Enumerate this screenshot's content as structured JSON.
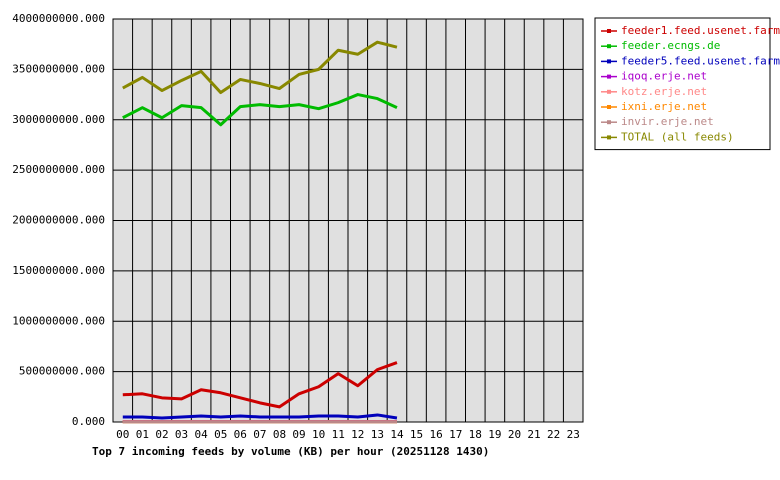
{
  "chart_data": {
    "type": "line",
    "title": "Top 7 incoming feeds by volume (KB) per hour (20251128 1430)",
    "categories": [
      "00",
      "01",
      "02",
      "03",
      "04",
      "05",
      "06",
      "07",
      "08",
      "09",
      "10",
      "11",
      "12",
      "13",
      "14",
      "15",
      "16",
      "17",
      "18",
      "19",
      "20",
      "21",
      "22",
      "23"
    ],
    "ylim": [
      0,
      4000000000
    ],
    "yticks": [
      {
        "value": 0,
        "label": "0.000"
      },
      {
        "value": 500000000,
        "label": "500000000.000"
      },
      {
        "value": 1000000000,
        "label": "1000000000.000"
      },
      {
        "value": 1500000000,
        "label": "1500000000.000"
      },
      {
        "value": 2000000000,
        "label": "2000000000.000"
      },
      {
        "value": 2500000000,
        "label": "2500000000.000"
      },
      {
        "value": 3000000000,
        "label": "3000000000.000"
      },
      {
        "value": 3500000000,
        "label": "3500000000.000"
      },
      {
        "value": 4000000000,
        "label": "4000000000.000"
      }
    ],
    "grid": true,
    "legend": "right",
    "series": [
      {
        "name": "feeder1.feed.usenet.farm",
        "color": "#cc0000",
        "values": [
          270000000,
          280000000,
          240000000,
          230000000,
          320000000,
          290000000,
          240000000,
          190000000,
          150000000,
          280000000,
          350000000,
          480000000,
          360000000,
          520000000,
          590000000,
          null,
          null,
          null,
          null,
          null,
          null,
          null,
          null,
          null
        ]
      },
      {
        "name": "feeder.ecngs.de",
        "color": "#00bb00",
        "values": [
          3020000000,
          3120000000,
          3020000000,
          3140000000,
          3120000000,
          2950000000,
          3130000000,
          3150000000,
          3130000000,
          3150000000,
          3110000000,
          3170000000,
          3250000000,
          3210000000,
          3120000000,
          null,
          null,
          null,
          null,
          null,
          null,
          null,
          null,
          null
        ]
      },
      {
        "name": "feeder5.feed.usenet.farm",
        "color": "#0000bb",
        "values": [
          50000000,
          50000000,
          40000000,
          50000000,
          60000000,
          50000000,
          60000000,
          50000000,
          50000000,
          50000000,
          60000000,
          60000000,
          50000000,
          70000000,
          40000000,
          null,
          null,
          null,
          null,
          null,
          null,
          null,
          null,
          null
        ]
      },
      {
        "name": "iqoq.erje.net",
        "color": "#aa00cc",
        "values": [
          5000000,
          5000000,
          5000000,
          5000000,
          5000000,
          5000000,
          5000000,
          5000000,
          5000000,
          5000000,
          5000000,
          5000000,
          5000000,
          5000000,
          5000000,
          null,
          null,
          null,
          null,
          null,
          null,
          null,
          null,
          null
        ]
      },
      {
        "name": "kotz.erje.net",
        "color": "#ff8888",
        "values": [
          2000000,
          2000000,
          2000000,
          2000000,
          2000000,
          2000000,
          2000000,
          2000000,
          2000000,
          2000000,
          2000000,
          2000000,
          2000000,
          2000000,
          2000000,
          null,
          null,
          null,
          null,
          null,
          null,
          null,
          null,
          null
        ]
      },
      {
        "name": "ixni.erje.net",
        "color": "#ff8800",
        "values": [
          1000000,
          1000000,
          1000000,
          1000000,
          1000000,
          1000000,
          1000000,
          1000000,
          1000000,
          1000000,
          1000000,
          1000000,
          1000000,
          1000000,
          1000000,
          null,
          null,
          null,
          null,
          null,
          null,
          null,
          null,
          null
        ]
      },
      {
        "name": "invir.erje.net",
        "color": "#bb8888",
        "values": [
          1000000,
          1000000,
          1000000,
          1000000,
          1000000,
          1000000,
          1000000,
          1000000,
          1000000,
          1000000,
          1000000,
          1000000,
          1000000,
          1000000,
          1000000,
          null,
          null,
          null,
          null,
          null,
          null,
          null,
          null,
          null
        ]
      },
      {
        "name": "TOTAL (all feeds)",
        "color": "#888800",
        "values": [
          3315000000,
          3420000000,
          3290000000,
          3390000000,
          3480000000,
          3270000000,
          3400000000,
          3360000000,
          3310000000,
          3450000000,
          3500000000,
          3690000000,
          3650000000,
          3770000000,
          3720000000,
          null,
          null,
          null,
          null,
          null,
          null,
          null,
          null,
          null
        ]
      }
    ]
  }
}
